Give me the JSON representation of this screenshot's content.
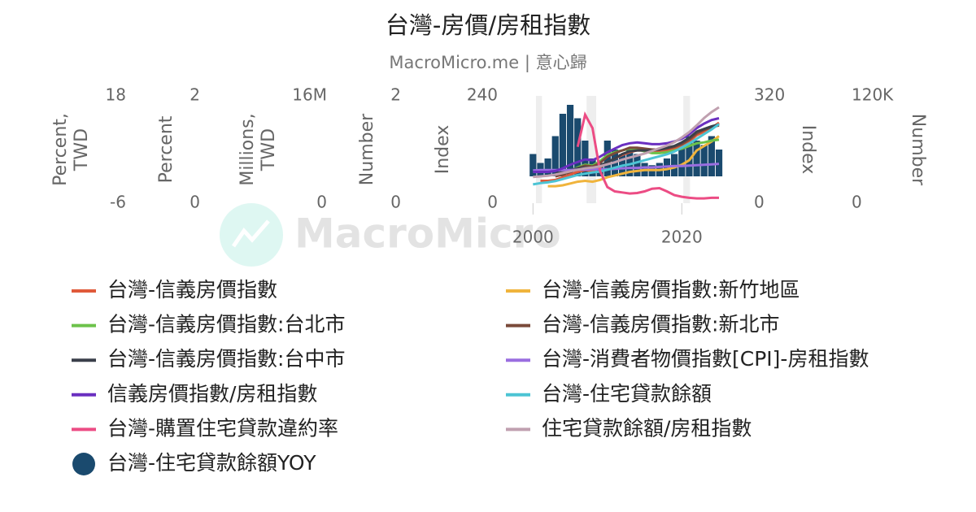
{
  "chart_data": {
    "type": "line",
    "title": "台灣-房價/房租指數",
    "subtitle": "MacroMicro.me | 意心歸",
    "watermark": "MacroMicro",
    "xlim": [
      1999.2,
      2026.2
    ],
    "xticks": [
      2000,
      2020
    ],
    "shaded": [
      [
        2000.4,
        2001.2
      ],
      [
        2007.2,
        2008.5
      ],
      [
        2020.2,
        2021.1
      ]
    ],
    "x": [
      2000,
      2001,
      2002,
      2003,
      2004,
      2005,
      2006,
      2007,
      2008,
      2009,
      2010,
      2011,
      2012,
      2013,
      2014,
      2015,
      2016,
      2017,
      2018,
      2019,
      2020,
      2021,
      2022,
      2023,
      2024,
      2025
    ],
    "yaxes": [
      {
        "title_lines": [
          "Percent,",
          "TWD"
        ],
        "lim": [
          -6,
          18
        ],
        "ticks": [
          -6,
          18
        ],
        "side": "left"
      },
      {
        "title_lines": [
          "Percent"
        ],
        "lim": [
          0,
          2
        ],
        "ticks": [
          0,
          2
        ],
        "side": "left"
      },
      {
        "title_lines": [
          "Millions,",
          "TWD"
        ],
        "lim": [
          0,
          16000000
        ],
        "ticks": [
          0,
          {
            "value": 16000000,
            "label": "16M"
          }
        ],
        "side": "left"
      },
      {
        "title_lines": [
          "Number"
        ],
        "lim": [
          0,
          2
        ],
        "ticks": [
          0,
          2
        ],
        "side": "left"
      },
      {
        "title_lines": [
          "Index"
        ],
        "lim": [
          0,
          240
        ],
        "ticks": [
          0,
          240
        ],
        "side": "left"
      },
      {
        "title_lines": [
          "Index"
        ],
        "lim": [
          0,
          320
        ],
        "ticks": [
          0,
          320
        ],
        "side": "right"
      },
      {
        "title_lines": [
          "Number"
        ],
        "lim": [
          0,
          120000
        ],
        "ticks": [
          0,
          {
            "value": 120000,
            "label": "120K"
          }
        ],
        "side": "right"
      }
    ],
    "series": [
      {
        "name": "台灣-信義房價指數",
        "color": "#e05a3a",
        "axis": 4,
        "kind": "line",
        "values": [
          null,
          50,
          50,
          52,
          58,
          64,
          70,
          74,
          72,
          80,
          92,
          100,
          108,
          114,
          118,
          118,
          116,
          116,
          118,
          122,
          128,
          138,
          152,
          160,
          168,
          180
        ]
      },
      {
        "name": "台灣-信義房價指數:新竹地區",
        "color": "#f0b43c",
        "axis": 4,
        "kind": "line",
        "values": [
          null,
          null,
          38,
          38,
          40,
          44,
          48,
          50,
          48,
          52,
          58,
          62,
          66,
          70,
          72,
          74,
          74,
          74,
          76,
          80,
          86,
          96,
          118,
          128,
          138,
          150
        ]
      },
      {
        "name": "台灣-信義房價指數:台北市",
        "color": "#6cc24a",
        "axis": 4,
        "kind": "line",
        "values": [
          null,
          null,
          null,
          62,
          66,
          72,
          80,
          86,
          84,
          94,
          108,
          114,
          118,
          122,
          120,
          116,
          112,
          112,
          114,
          118,
          122,
          128,
          134,
          136,
          140,
          142
        ]
      },
      {
        "name": "台灣-信義房價指數:新北市",
        "color": "#7a4a3a",
        "axis": 4,
        "kind": "line",
        "values": [
          null,
          null,
          null,
          60,
          64,
          70,
          78,
          84,
          82,
          90,
          104,
          112,
          118,
          124,
          124,
          122,
          120,
          120,
          122,
          126,
          132,
          142,
          156,
          164,
          170,
          174
        ]
      },
      {
        "name": "台灣-信義房價指數:台中市",
        "color": "#3a3f4a",
        "axis": 4,
        "kind": "line",
        "values": [
          null,
          null,
          null,
          66,
          70,
          74,
          78,
          80,
          78,
          84,
          92,
          100,
          110,
          116,
          118,
          118,
          118,
          120,
          124,
          128,
          136,
          146,
          160,
          166,
          172,
          176
        ]
      },
      {
        "name": "台灣-消費者物價指數[CPI]-房租指數",
        "color": "#9a6ee0",
        "axis": 4,
        "kind": "line",
        "values": [
          73,
          74,
          74,
          74,
          74,
          74,
          75,
          75,
          76,
          76,
          76,
          77,
          78,
          79,
          79,
          80,
          80,
          81,
          82,
          83,
          83,
          84,
          85,
          86,
          87,
          88
        ]
      },
      {
        "name": "信義房價指數/房租指數",
        "color": "#6a2fc0",
        "axis": 4,
        "kind": "line",
        "values": [
          70,
          70,
          70,
          72,
          78,
          86,
          92,
          98,
          96,
          104,
          114,
          122,
          130,
          134,
          136,
          134,
          132,
          132,
          134,
          138,
          144,
          154,
          168,
          178,
          186,
          190
        ]
      },
      {
        "name": "台灣-住宅貸款餘額",
        "color": "#4cc4d4",
        "axis": 2,
        "kind": "line",
        "values": [
          2800000,
          3000000,
          3100000,
          3300000,
          3600000,
          3900000,
          4200000,
          4400000,
          4600000,
          4700000,
          5000000,
          5300000,
          5600000,
          5800000,
          6100000,
          6400000,
          6700000,
          7000000,
          7300000,
          7700000,
          8300000,
          8900000,
          9600000,
          10300000,
          11000000,
          11800000
        ]
      },
      {
        "name": "台灣-購置住宅貸款違約率",
        "color": "#ec4c84",
        "axis": 1,
        "kind": "line",
        "values": [
          null,
          null,
          null,
          null,
          null,
          null,
          1.05,
          1.65,
          1.4,
          0.6,
          0.3,
          0.22,
          0.2,
          0.18,
          0.19,
          0.22,
          0.27,
          0.28,
          0.22,
          0.15,
          0.12,
          0.1,
          0.09,
          0.09,
          0.1,
          0.1
        ]
      },
      {
        "name": "住宅貸款餘額/房租指數",
        "color": "#c0a0b0",
        "axis": 5,
        "kind": "line",
        "values": [
          78,
          80,
          82,
          85,
          90,
          95,
          100,
          104,
          106,
          110,
          116,
          122,
          130,
          136,
          142,
          148,
          156,
          164,
          172,
          182,
          196,
          212,
          232,
          254,
          272,
          286
        ]
      },
      {
        "name": "台灣-住宅貸款餘額YOY",
        "color": "#1a4a6e",
        "axis": 0,
        "kind": "bar",
        "values": [
          5,
          3,
          4,
          9,
          14,
          16,
          13,
          8,
          4,
          3,
          8,
          6,
          5,
          6,
          5,
          3,
          2.5,
          3,
          4,
          5,
          7,
          9,
          8,
          7,
          9,
          6
        ]
      }
    ]
  }
}
